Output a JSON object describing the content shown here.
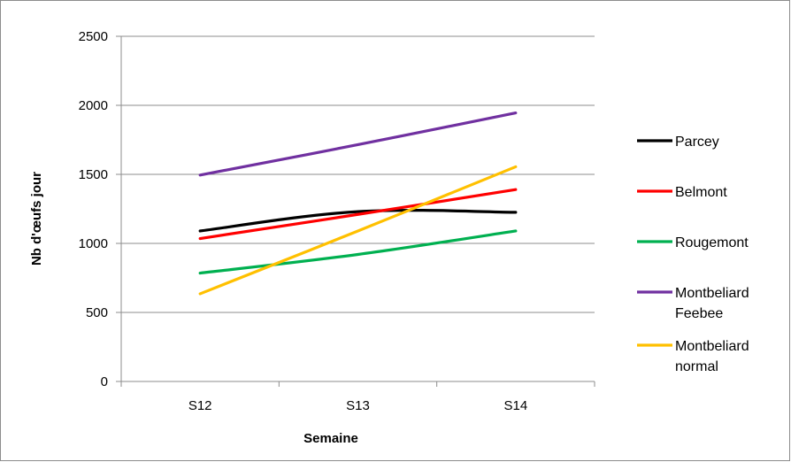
{
  "chart_data": {
    "type": "line",
    "title": "",
    "xlabel": "Semaine",
    "ylabel": "Nb d'œufs jour",
    "categories": [
      "S12",
      "S13",
      "S14"
    ],
    "ylim": [
      0,
      2500
    ],
    "yticks": [
      0,
      500,
      1000,
      1500,
      2000,
      2500
    ],
    "grid": true,
    "legend": "right",
    "series": [
      {
        "name": "Parcey",
        "legend_lines": [
          "Parcey"
        ],
        "color": "#000000",
        "values": [
          1090,
          1230,
          1225
        ]
      },
      {
        "name": "Belmont",
        "legend_lines": [
          "Belmont"
        ],
        "color": "#ff0000",
        "values": [
          1035,
          1210,
          1390
        ]
      },
      {
        "name": "Rougemont",
        "legend_lines": [
          "Rougemont"
        ],
        "color": "#00b050",
        "values": [
          785,
          920,
          1090
        ]
      },
      {
        "name": "Montbeliard Feebee",
        "legend_lines": [
          "Montbeliard",
          "Feebee"
        ],
        "color": "#7030a0",
        "values": [
          1495,
          1715,
          1945
        ]
      },
      {
        "name": "Montbeliard normal",
        "legend_lines": [
          "Montbeliard",
          "normal"
        ],
        "color": "#ffc000",
        "values": [
          635,
          1090,
          1555
        ]
      }
    ]
  }
}
